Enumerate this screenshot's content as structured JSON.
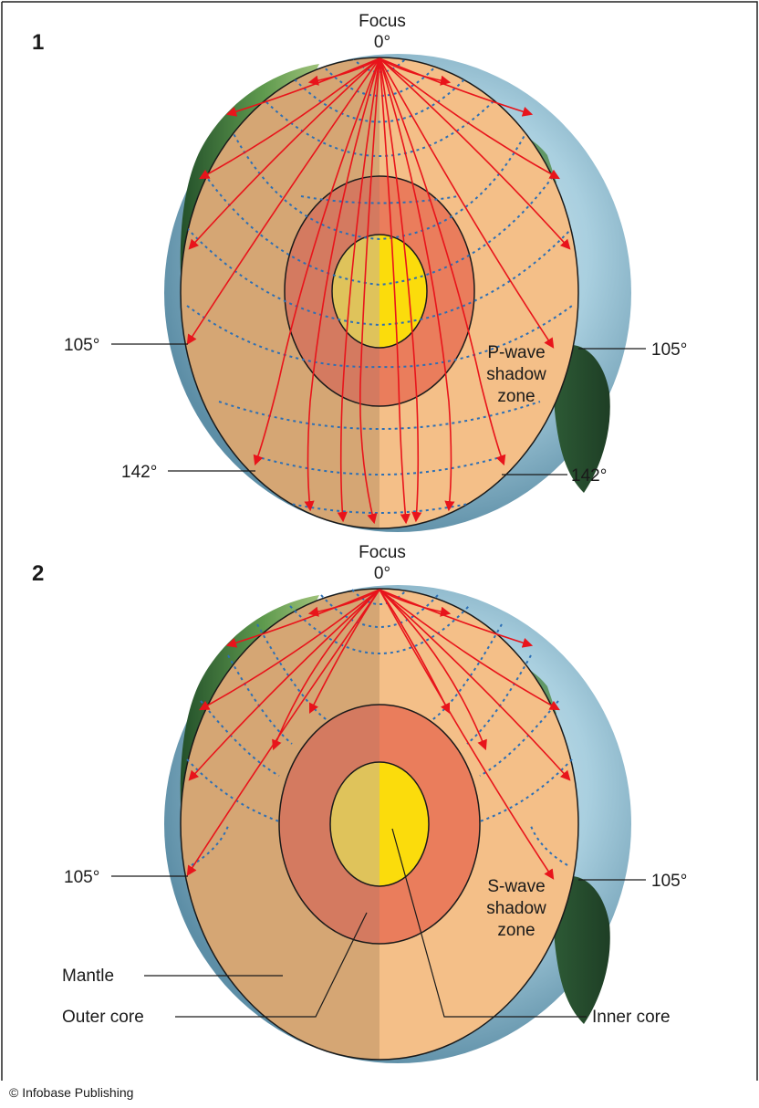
{
  "credit": "© Infobase Publishing",
  "panels": [
    {
      "number": "1",
      "focus_label": "Focus",
      "focus_angle": "0°",
      "angles": {
        "left_105": "105°",
        "right_105": "105°",
        "left_142": "142°",
        "right_142": "142°"
      },
      "shadow_zone": [
        "P-wave",
        "shadow",
        "zone"
      ]
    },
    {
      "number": "2",
      "focus_label": "Focus",
      "focus_angle": "0°",
      "angles": {
        "left_105": "105°",
        "right_105": "105°"
      },
      "shadow_zone": [
        "S-wave",
        "shadow",
        "zone"
      ],
      "layers": {
        "mantle": "Mantle",
        "outer_core": "Outer core",
        "inner_core": "Inner core"
      }
    }
  ],
  "colors": {
    "mantle_left": "#d5a674",
    "mantle_right": "#f4bf88",
    "outer_core_left": "#d47a60",
    "outer_core_right": "#ea7d5c",
    "inner_core_left": "#dfc35b",
    "inner_core_right": "#fbdc0c",
    "ray": "#e8141b",
    "wavefront": "#2c6fb5",
    "ocean": "#8fbcd1",
    "land": "#3f7a3a"
  }
}
